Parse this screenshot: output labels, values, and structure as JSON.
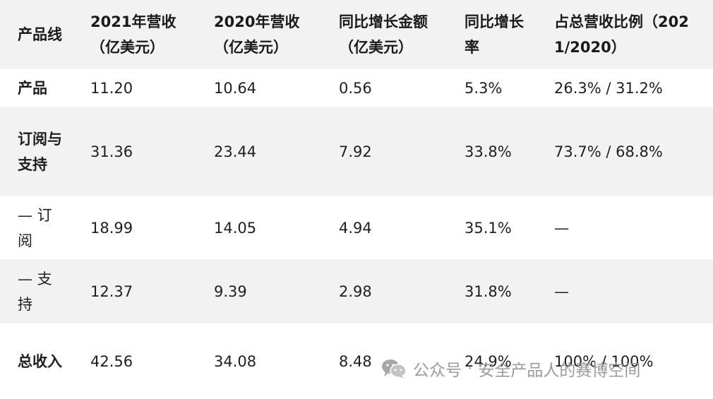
{
  "table": {
    "headers": [
      "产品线",
      "2021年营收（亿美元）",
      "2020年营收（亿美元）",
      "同比增长金额（亿美元）",
      "同比增长率",
      "占总营收比例（2021/2020）"
    ],
    "rows": [
      {
        "cells": [
          "产品",
          "11.20",
          "10.64",
          "0.56",
          "5.3%",
          "26.3% / 31.2%"
        ]
      },
      {
        "cells": [
          "订阅与支持",
          "31.36",
          "23.44",
          "7.92",
          "33.8%",
          "73.7% / 68.8%"
        ]
      },
      {
        "cells": [
          "— 订阅",
          "18.99",
          "14.05",
          "4.94",
          "35.1%",
          "—"
        ]
      },
      {
        "cells": [
          "— 支持",
          "12.37",
          "9.39",
          "2.98",
          "31.8%",
          "—"
        ]
      },
      {
        "cells": [
          "总收入",
          "42.56",
          "34.08",
          "8.48",
          "24.9%",
          "100% / 100%"
        ]
      }
    ]
  },
  "watermark": {
    "icon": "wechat-icon",
    "account_type": "公众号",
    "separator": "·",
    "account_name": "安全产品人的赛博空间"
  }
}
